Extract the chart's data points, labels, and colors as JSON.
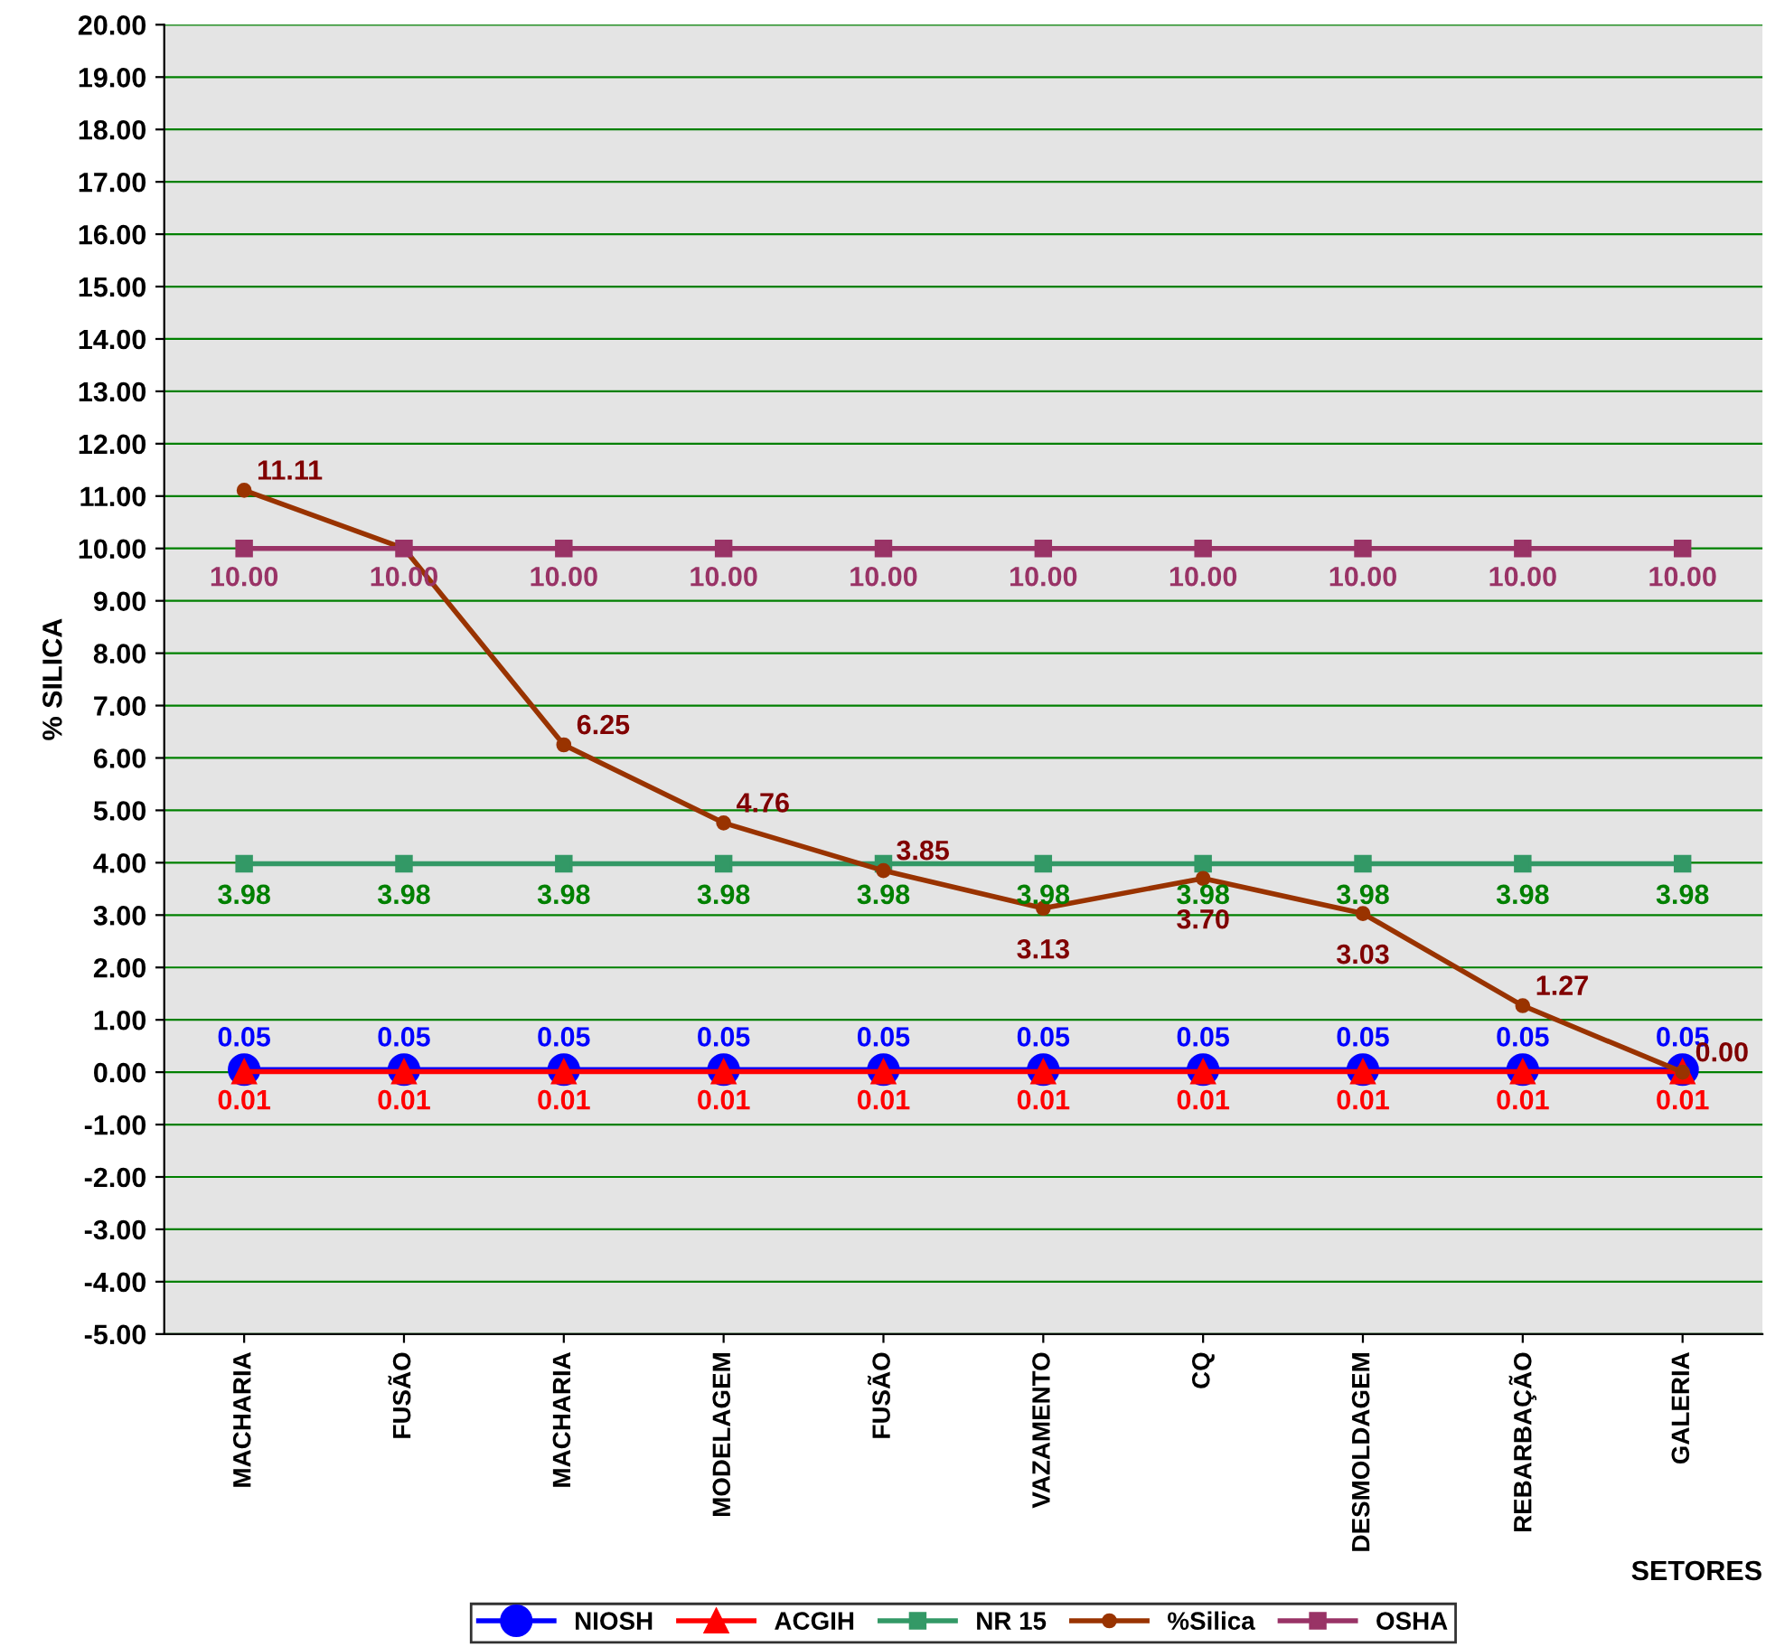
{
  "chart_data": {
    "type": "line",
    "xlabel": "SETORES",
    "ylabel": "% SILICA",
    "categories": [
      "MACHARIA",
      "FUSÃO",
      "MACHARIA",
      "MODELAGEM",
      "FUSÃO",
      "VAZAMENTO",
      "CQ",
      "DESMOLDAGEM",
      "REBARBAÇÃO",
      "GALERIA"
    ],
    "series": [
      {
        "name": "NIOSH",
        "color": "#0000ff",
        "marker": "circle",
        "values": [
          0.05,
          0.05,
          0.05,
          0.05,
          0.05,
          0.05,
          0.05,
          0.05,
          0.05,
          0.05
        ],
        "value_labels": [
          "0.05",
          "0.05",
          "0.05",
          "0.05",
          "0.05",
          "0.05",
          "0.05",
          "0.05",
          "0.05",
          "0.05"
        ]
      },
      {
        "name": "ACGIH",
        "color": "#ff0000",
        "marker": "triangle",
        "values": [
          0.01,
          0.01,
          0.01,
          0.01,
          0.01,
          0.01,
          0.01,
          0.01,
          0.01,
          0.01
        ],
        "value_labels": [
          "0.01",
          "0.01",
          "0.01",
          "0.01",
          "0.01",
          "0.01",
          "0.01",
          "0.01",
          "0.01",
          "0.01"
        ]
      },
      {
        "name": "NR 15",
        "color": "#339966",
        "marker": "square",
        "values": [
          3.98,
          3.98,
          3.98,
          3.98,
          3.98,
          3.98,
          3.98,
          3.98,
          3.98,
          3.98
        ],
        "value_labels": [
          "3.98",
          "3.98",
          "3.98",
          "3.98",
          "3.98",
          "3.98",
          "3.98",
          "3.98",
          "3.98",
          "3.98"
        ]
      },
      {
        "name": "%Silica",
        "color": "#993300",
        "marker": "circle",
        "values": [
          11.11,
          10.0,
          6.25,
          4.76,
          3.85,
          3.13,
          3.7,
          3.03,
          1.27,
          0.0
        ],
        "value_labels": [
          "11.11",
          null,
          "6.25",
          "4.76",
          "3.85",
          "3.13",
          "3.70",
          "3.03",
          "1.27",
          "0.00"
        ]
      },
      {
        "name": "OSHA",
        "color": "#993366",
        "marker": "square",
        "values": [
          10.0,
          10.0,
          10.0,
          10.0,
          10.0,
          10.0,
          10.0,
          10.0,
          10.0,
          10.0
        ],
        "value_labels": [
          "10.00",
          "10.00",
          "10.00",
          "10.00",
          "10.00",
          "10.00",
          "10.00",
          "10.00",
          "10.00",
          "10.00"
        ]
      }
    ],
    "data_labels": true,
    "ylim": [
      -5,
      20
    ],
    "yticks": [
      {
        "value": -5,
        "label": "-5.00"
      },
      {
        "value": -4,
        "label": "-4.00"
      },
      {
        "value": -3,
        "label": "-3.00"
      },
      {
        "value": -2,
        "label": "-2.00"
      },
      {
        "value": -1,
        "label": "-1.00"
      },
      {
        "value": 0,
        "label": "0.00"
      },
      {
        "value": 1,
        "label": "1.00"
      },
      {
        "value": 2,
        "label": "2.00"
      },
      {
        "value": 3,
        "label": "3.00"
      },
      {
        "value": 4,
        "label": "4.00"
      },
      {
        "value": 5,
        "label": "5.00"
      },
      {
        "value": 6,
        "label": "6.00"
      },
      {
        "value": 7,
        "label": "7.00"
      },
      {
        "value": 8,
        "label": "8.00"
      },
      {
        "value": 9,
        "label": "9.00"
      },
      {
        "value": 10,
        "label": "10.00"
      },
      {
        "value": 11,
        "label": "11.00"
      },
      {
        "value": 12,
        "label": "12.00"
      },
      {
        "value": 13,
        "label": "13.00"
      },
      {
        "value": 14,
        "label": "14.00"
      },
      {
        "value": 15,
        "label": "15.00"
      },
      {
        "value": 16,
        "label": "16.00"
      },
      {
        "value": 17,
        "label": "17.00"
      },
      {
        "value": 18,
        "label": "18.00"
      },
      {
        "value": 19,
        "label": "19.00"
      },
      {
        "value": 20,
        "label": "20.00"
      }
    ],
    "grid": "y",
    "legend": "bottom",
    "line_style": "solid"
  }
}
